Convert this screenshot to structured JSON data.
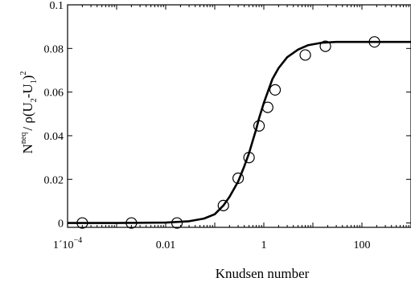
{
  "chart_data": {
    "type": "line",
    "xlabel": "Knudsen number",
    "xscale": "log",
    "xlim": [
      0.0001,
      1000
    ],
    "ylim": [
      -0.002,
      0.1
    ],
    "grid": false,
    "x_ticks": [
      {
        "value": 0.0001,
        "base": "1´10",
        "exp": "−4"
      },
      {
        "value": 0.01,
        "label": "0.01"
      },
      {
        "value": 1,
        "label": "1"
      },
      {
        "value": 100,
        "label": "100"
      }
    ],
    "y_ticks": [
      {
        "value": 0,
        "label": "0"
      },
      {
        "value": 0.02,
        "label": "0.02"
      },
      {
        "value": 0.04,
        "label": "0.04"
      },
      {
        "value": 0.06,
        "label": "0.06"
      },
      {
        "value": 0.08,
        "label": "0.08"
      },
      {
        "value": 0.1,
        "label": "0.1"
      }
    ],
    "ylabel_parts": {
      "n": "N",
      "neq": "neq",
      "rest": "/ ρ(U",
      "s2": "2",
      "mid": "-U",
      "s1": "1",
      "close": ")",
      "sq": "2"
    },
    "series": [
      {
        "style": "line",
        "x": [
          0.0001,
          0.001,
          0.01,
          0.03,
          0.06,
          0.1,
          0.15,
          0.2,
          0.3,
          0.4,
          0.5,
          0.6,
          0.7,
          0.8,
          1.0,
          1.2,
          1.5,
          2,
          3,
          5,
          8,
          15,
          30,
          100,
          1000
        ],
        "y": [
          0.0,
          0.0,
          0.0002,
          0.0008,
          0.002,
          0.004,
          0.008,
          0.012,
          0.019,
          0.026,
          0.032,
          0.038,
          0.043,
          0.048,
          0.055,
          0.06,
          0.066,
          0.071,
          0.076,
          0.0795,
          0.0815,
          0.0826,
          0.083,
          0.083,
          0.083
        ]
      },
      {
        "style": "markers",
        "marker": "open-circle",
        "x": [
          0.0002,
          0.002,
          0.017,
          0.15,
          0.3,
          0.5,
          0.8,
          1.2,
          1.7,
          7,
          18,
          180
        ],
        "y": [
          0.0,
          0.0,
          0.0,
          0.008,
          0.0205,
          0.03,
          0.0445,
          0.053,
          0.061,
          0.077,
          0.081,
          0.083
        ]
      }
    ]
  }
}
